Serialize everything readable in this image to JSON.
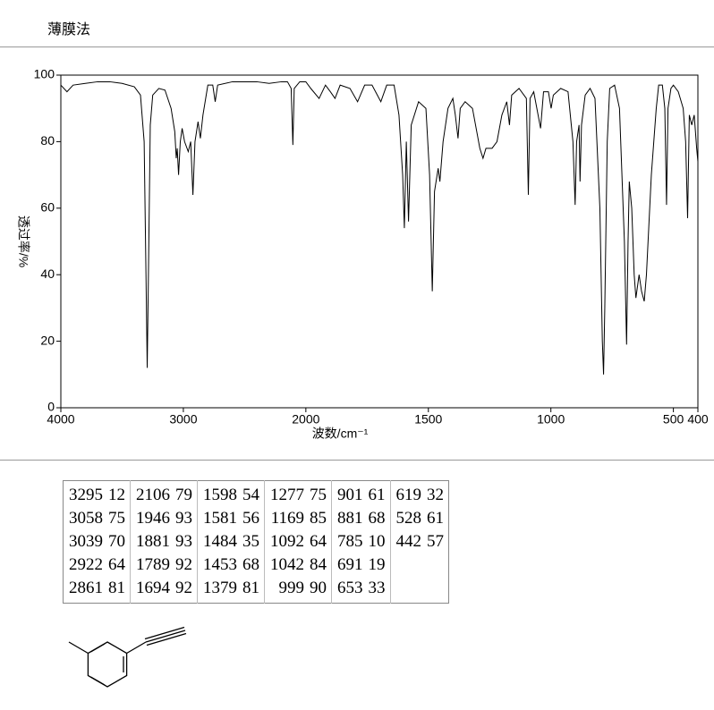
{
  "header": {
    "title": "薄膜法"
  },
  "chart_data": {
    "type": "line",
    "color": "#000000",
    "ylabel": "透过率/%",
    "xlabel": "波数/cm⁻¹",
    "xlim": [
      4000,
      400
    ],
    "xscale_break": 2000,
    "xticks": [
      4000,
      3000,
      2000,
      1500,
      1000,
      500,
      400
    ],
    "ylim": [
      0,
      100
    ],
    "yticks": [
      0,
      20,
      40,
      60,
      80,
      100
    ],
    "x": [
      4000,
      3950,
      3900,
      3800,
      3700,
      3600,
      3500,
      3400,
      3350,
      3320,
      3305,
      3295,
      3285,
      3270,
      3250,
      3200,
      3150,
      3100,
      3070,
      3058,
      3050,
      3039,
      3025,
      3010,
      2990,
      2960,
      2940,
      2922,
      2905,
      2880,
      2861,
      2840,
      2800,
      2760,
      2740,
      2720,
      2600,
      2500,
      2400,
      2300,
      2200,
      2150,
      2120,
      2106,
      2095,
      2050,
      2000,
      1980,
      1946,
      1920,
      1900,
      1881,
      1860,
      1820,
      1789,
      1760,
      1730,
      1694,
      1670,
      1640,
      1620,
      1605,
      1598,
      1590,
      1581,
      1570,
      1540,
      1510,
      1495,
      1484,
      1475,
      1460,
      1453,
      1440,
      1420,
      1400,
      1390,
      1379,
      1370,
      1350,
      1320,
      1300,
      1290,
      1277,
      1265,
      1240,
      1220,
      1200,
      1180,
      1169,
      1160,
      1130,
      1100,
      1092,
      1085,
      1070,
      1042,
      1030,
      1010,
      999,
      990,
      960,
      930,
      910,
      901,
      895,
      885,
      881,
      875,
      860,
      840,
      820,
      800,
      790,
      785,
      780,
      770,
      760,
      740,
      720,
      700,
      691,
      685,
      680,
      670,
      660,
      653,
      640,
      630,
      619,
      610,
      590,
      570,
      560,
      545,
      535,
      528,
      522,
      510,
      500,
      480,
      460,
      450,
      442,
      435,
      425,
      415,
      405,
      400
    ],
    "values": [
      97,
      95,
      97,
      97.5,
      98,
      98,
      97.5,
      96.5,
      94,
      80,
      40,
      12,
      40,
      85,
      94,
      96,
      95.5,
      90,
      83,
      75,
      78,
      70,
      80,
      84,
      80,
      77,
      80,
      64,
      80,
      86,
      81,
      88,
      97,
      97,
      92,
      97,
      98,
      98,
      98,
      97.5,
      98,
      98,
      96,
      79,
      96,
      98,
      98,
      96,
      93,
      97,
      95,
      93,
      97,
      96,
      92,
      97,
      97,
      92,
      97,
      97,
      88,
      70,
      54,
      80,
      56,
      85,
      92,
      90,
      70,
      35,
      65,
      72,
      68,
      80,
      90,
      93,
      88,
      81,
      90,
      92,
      90,
      82,
      78,
      75,
      78,
      78,
      80,
      88,
      92,
      85,
      94,
      96,
      93,
      64,
      93,
      95,
      84,
      95,
      95,
      90,
      94,
      96,
      95,
      80,
      61,
      80,
      85,
      68,
      85,
      94,
      96,
      93,
      60,
      20,
      10,
      30,
      80,
      96,
      97,
      90,
      50,
      19,
      50,
      68,
      60,
      40,
      33,
      40,
      35,
      32,
      40,
      70,
      90,
      97,
      97,
      90,
      61,
      90,
      96,
      97,
      95,
      90,
      80,
      57,
      88,
      85,
      88,
      78,
      74
    ]
  },
  "table": {
    "columns": [
      [
        [
          3295,
          12
        ],
        [
          3058,
          75
        ],
        [
          3039,
          70
        ],
        [
          2922,
          64
        ],
        [
          2861,
          81
        ]
      ],
      [
        [
          2106,
          79
        ],
        [
          1946,
          93
        ],
        [
          1881,
          93
        ],
        [
          1789,
          92
        ],
        [
          1694,
          92
        ]
      ],
      [
        [
          1598,
          54
        ],
        [
          1581,
          56
        ],
        [
          1484,
          35
        ],
        [
          1453,
          68
        ],
        [
          1379,
          81
        ]
      ],
      [
        [
          1277,
          75
        ],
        [
          1169,
          85
        ],
        [
          1092,
          64
        ],
        [
          1042,
          84
        ],
        [
          999,
          90
        ]
      ],
      [
        [
          901,
          61
        ],
        [
          881,
          68
        ],
        [
          785,
          10
        ],
        [
          691,
          19
        ],
        [
          653,
          33
        ]
      ],
      [
        [
          619,
          32
        ],
        [
          528,
          61
        ],
        [
          442,
          57
        ]
      ]
    ]
  }
}
